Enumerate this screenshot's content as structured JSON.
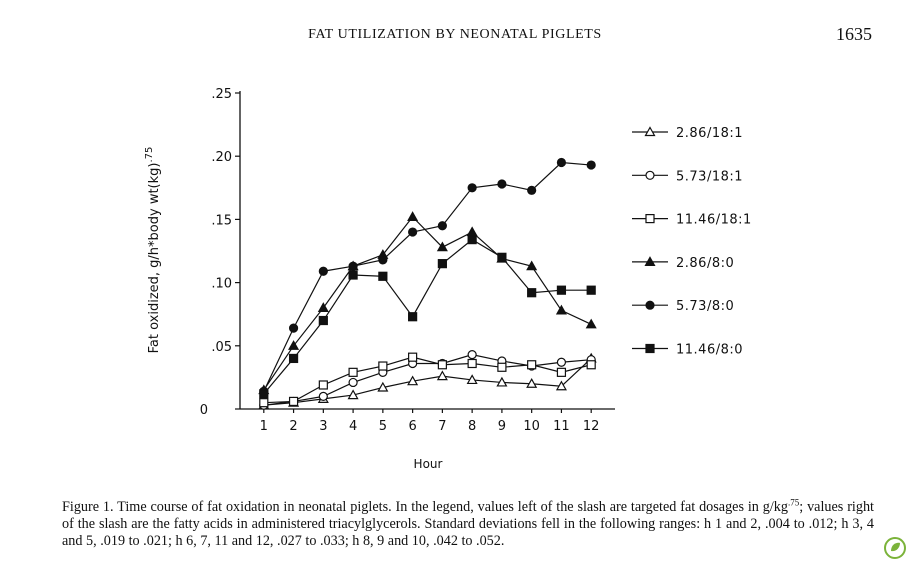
{
  "header": {
    "title": "FAT UTILIZATION BY NEONATAL PIGLETS",
    "page": "1635"
  },
  "chart_data": {
    "type": "line",
    "xlabel": "Hour",
    "ylabel": {
      "text": "Fat oxidized, g/h*body wt(kg)",
      "sup": ".75"
    },
    "x": [
      1,
      2,
      3,
      4,
      5,
      6,
      7,
      8,
      9,
      10,
      11,
      12
    ],
    "xlim": [
      0.2,
      12.8
    ],
    "xticks": [
      1,
      2,
      3,
      4,
      5,
      6,
      7,
      8,
      9,
      10,
      11,
      12
    ],
    "ylim": [
      0,
      0.25
    ],
    "yticks": [
      0,
      {
        "value": 0.05,
        "label": ".05"
      },
      {
        "value": 0.1,
        "label": ".10"
      },
      {
        "value": 0.15,
        "label": ".15"
      },
      {
        "value": 0.2,
        "label": ".20"
      },
      {
        "value": 0.25,
        "label": ".25"
      }
    ],
    "legend": "right",
    "series": [
      {
        "name": "2.86/18:1",
        "color": "#111111",
        "marker": "triangle",
        "filled": false,
        "values": [
          0.003,
          0.005,
          0.008,
          0.011,
          0.017,
          0.022,
          0.026,
          0.023,
          0.021,
          0.02,
          0.018,
          0.04
        ]
      },
      {
        "name": "5.73/18:1",
        "color": "#111111",
        "marker": "circle",
        "filled": false,
        "values": [
          0.003,
          0.006,
          0.01,
          0.021,
          0.029,
          0.036,
          0.036,
          0.043,
          0.038,
          0.034,
          0.037,
          0.039
        ]
      },
      {
        "name": "11.46/18:1",
        "color": "#111111",
        "marker": "square",
        "filled": false,
        "values": [
          0.005,
          0.006,
          0.019,
          0.029,
          0.034,
          0.041,
          0.035,
          0.036,
          0.033,
          0.035,
          0.029,
          0.035
        ]
      },
      {
        "name": "2.86/8:0",
        "color": "#111111",
        "marker": "triangle",
        "filled": true,
        "values": [
          0.015,
          0.05,
          0.08,
          0.113,
          0.122,
          0.152,
          0.128,
          0.14,
          0.119,
          0.113,
          0.078,
          0.067
        ]
      },
      {
        "name": "5.73/8:0",
        "color": "#111111",
        "marker": "circle",
        "filled": true,
        "values": [
          0.014,
          0.064,
          0.109,
          0.113,
          0.118,
          0.14,
          0.145,
          0.175,
          0.178,
          0.173,
          0.195,
          0.193
        ]
      },
      {
        "name": "11.46/8:0",
        "color": "#111111",
        "marker": "square",
        "filled": true,
        "values": [
          0.012,
          0.04,
          0.07,
          0.106,
          0.105,
          0.073,
          0.115,
          0.134,
          0.12,
          0.092,
          0.094,
          0.094
        ]
      }
    ]
  },
  "caption": {
    "before": "Figure 1. Time course of fat oxidation in neonatal piglets. In the legend, values left of the slash are targeted fat dosages in g/kg",
    "sup": ".75",
    "after": "; values right of the slash are the fatty acids in administered triacylglycerols. Standard deviations fell in the following ranges: h 1 and 2, .004 to .012; h 3, 4 and 5, .019 to .021; h 6, 7, 11 and 12, .027 to .033; h 8, 9 and 10, .042 to .052."
  }
}
